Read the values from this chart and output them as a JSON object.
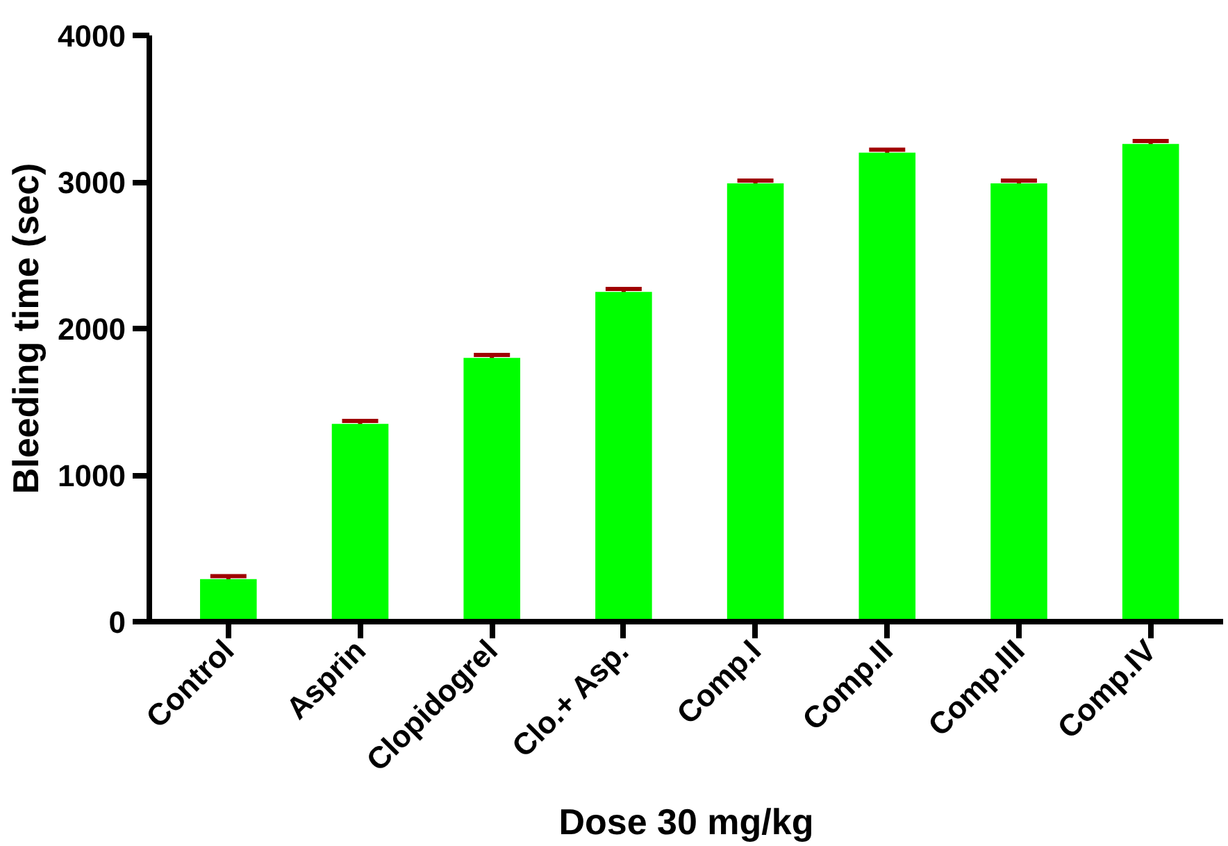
{
  "chart_data": {
    "type": "bar",
    "xlabel": "Dose 30 mg/kg",
    "ylabel": "Bleeding time (sec)",
    "categories": [
      "Control",
      "Asprin",
      "Clopidogrel",
      "Clo.+ Asp.",
      "Comp.I",
      "Comp.II",
      "Comp.III",
      "Comp.IV"
    ],
    "values": [
      290,
      1350,
      1800,
      2250,
      2990,
      3200,
      2990,
      3260
    ],
    "errors": [
      20,
      20,
      20,
      20,
      20,
      20,
      20,
      20
    ],
    "color": "#00ff00",
    "ylim": [
      0,
      4000
    ],
    "yticks": [
      0,
      1000,
      2000,
      3000,
      4000
    ],
    "grid": false
  }
}
